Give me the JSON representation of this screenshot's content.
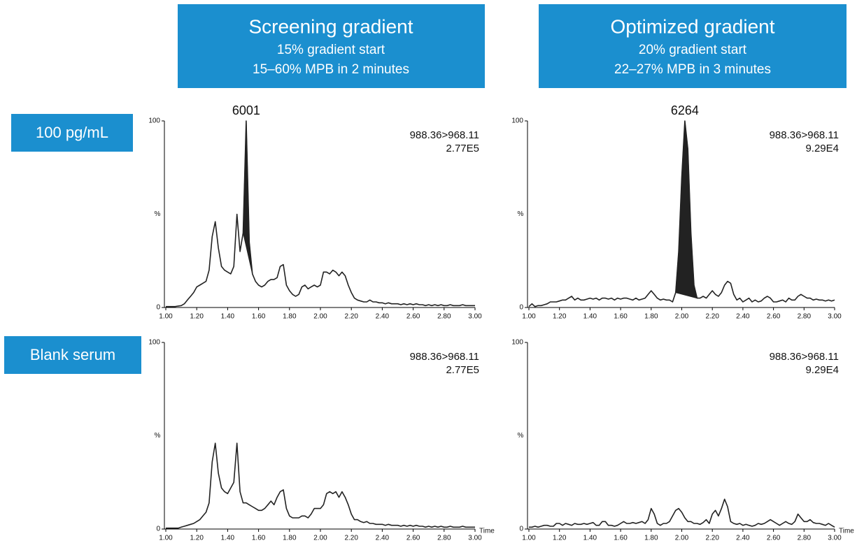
{
  "headers": [
    {
      "title": "Screening gradient",
      "lines": [
        "15% gradient start",
        "15–60% MPB in 2 minutes"
      ]
    },
    {
      "title": "Optimized gradient",
      "lines": [
        "20% gradient start",
        "22–27% MPB in 3 minutes"
      ]
    }
  ],
  "row_labels": [
    "100 pg/mL",
    "Blank serum"
  ],
  "chart_data": [
    {
      "type": "line",
      "ylabel": "%",
      "transition": "988.36>968.11",
      "intensity": "2.77E5",
      "peak_label": "6001",
      "fill_range": [
        1.5,
        1.56
      ],
      "color": "#222222",
      "fill_color": "#222222",
      "xlim": [
        1,
        3
      ],
      "ylim": [
        0,
        100
      ],
      "yticks": [
        0,
        100
      ],
      "xticks": [
        {
          "value": 1,
          "label": "1.00"
        },
        {
          "value": 1.2,
          "label": "1.20"
        },
        {
          "value": 1.4,
          "label": "1.40"
        },
        {
          "value": 1.6,
          "label": "1.60"
        },
        {
          "value": 1.8,
          "label": "1.80"
        },
        {
          "value": 2,
          "label": "2.00"
        },
        {
          "value": 2.2,
          "label": "2.20"
        },
        {
          "value": 2.4,
          "label": "2.40"
        },
        {
          "value": 2.6,
          "label": "2.60"
        },
        {
          "value": 2.8,
          "label": "2.80"
        },
        {
          "value": 3,
          "label": "3.00"
        }
      ],
      "x": [
        1.0,
        1.02,
        1.04,
        1.06,
        1.08,
        1.1,
        1.12,
        1.14,
        1.16,
        1.18,
        1.2,
        1.22,
        1.24,
        1.26,
        1.28,
        1.3,
        1.32,
        1.34,
        1.36,
        1.38,
        1.4,
        1.42,
        1.44,
        1.46,
        1.48,
        1.5,
        1.52,
        1.54,
        1.56,
        1.58,
        1.6,
        1.62,
        1.64,
        1.66,
        1.68,
        1.7,
        1.72,
        1.74,
        1.76,
        1.78,
        1.8,
        1.82,
        1.84,
        1.86,
        1.88,
        1.9,
        1.92,
        1.94,
        1.96,
        1.98,
        2.0,
        2.02,
        2.04,
        2.06,
        2.08,
        2.1,
        2.12,
        2.14,
        2.16,
        2.18,
        2.2,
        2.22,
        2.24,
        2.26,
        2.28,
        2.3,
        2.32,
        2.34,
        2.36,
        2.38,
        2.4,
        2.42,
        2.44,
        2.46,
        2.48,
        2.5,
        2.52,
        2.54,
        2.56,
        2.58,
        2.6,
        2.62,
        2.64,
        2.66,
        2.68,
        2.7,
        2.72,
        2.74,
        2.76,
        2.78,
        2.8,
        2.82,
        2.84,
        2.86,
        2.88,
        2.9,
        2.92,
        2.94,
        2.96,
        2.98,
        3.0
      ],
      "values": [
        0.5,
        0.5,
        0.5,
        0.5,
        0.8,
        1,
        2,
        4,
        6,
        8,
        11,
        12,
        13,
        14,
        20,
        38,
        46,
        32,
        22,
        20,
        19,
        18,
        22,
        50,
        30,
        40,
        100,
        35,
        18,
        14,
        12,
        11,
        12,
        14,
        15,
        15,
        16,
        22,
        23,
        12,
        9,
        7,
        6,
        7,
        11,
        12,
        10,
        11,
        12,
        11,
        12,
        19,
        19,
        18,
        20,
        19,
        17,
        19,
        17,
        12,
        8,
        5,
        4,
        3.5,
        3,
        3,
        4,
        3,
        3,
        2.5,
        2.5,
        2,
        2.5,
        2,
        2,
        2,
        1.5,
        2,
        1.5,
        2,
        1.5,
        2,
        1.5,
        1.5,
        1,
        1.5,
        1,
        1.5,
        1,
        1.5,
        1,
        1,
        1.5,
        1,
        1,
        1,
        1.5,
        1,
        1,
        1,
        1
      ]
    },
    {
      "type": "line",
      "ylabel": "%",
      "transition": "988.36>968.11",
      "intensity": "9.29E4",
      "peak_label": "6264",
      "fill_range": [
        1.96,
        2.1
      ],
      "color": "#222222",
      "fill_color": "#222222",
      "xlim": [
        1,
        3
      ],
      "ylim": [
        0,
        100
      ],
      "yticks": [
        0,
        100
      ],
      "xticks": [
        {
          "value": 1,
          "label": "1.00"
        },
        {
          "value": 1.2,
          "label": "1.20"
        },
        {
          "value": 1.4,
          "label": "1.40"
        },
        {
          "value": 1.6,
          "label": "1.60"
        },
        {
          "value": 1.8,
          "label": "1.80"
        },
        {
          "value": 2,
          "label": "2.00"
        },
        {
          "value": 2.2,
          "label": "2.20"
        },
        {
          "value": 2.4,
          "label": "2.40"
        },
        {
          "value": 2.6,
          "label": "2.60"
        },
        {
          "value": 2.8,
          "label": "2.80"
        },
        {
          "value": 3,
          "label": "3.00"
        }
      ],
      "x": [
        1.0,
        1.02,
        1.04,
        1.06,
        1.08,
        1.1,
        1.12,
        1.14,
        1.16,
        1.18,
        1.2,
        1.22,
        1.24,
        1.26,
        1.28,
        1.3,
        1.32,
        1.34,
        1.36,
        1.38,
        1.4,
        1.42,
        1.44,
        1.46,
        1.48,
        1.5,
        1.52,
        1.54,
        1.56,
        1.58,
        1.6,
        1.62,
        1.64,
        1.66,
        1.68,
        1.7,
        1.72,
        1.74,
        1.76,
        1.78,
        1.8,
        1.82,
        1.84,
        1.86,
        1.88,
        1.9,
        1.92,
        1.94,
        1.96,
        1.98,
        2.0,
        2.02,
        2.04,
        2.06,
        2.08,
        2.1,
        2.12,
        2.14,
        2.16,
        2.18,
        2.2,
        2.22,
        2.24,
        2.26,
        2.28,
        2.3,
        2.32,
        2.34,
        2.36,
        2.38,
        2.4,
        2.42,
        2.44,
        2.46,
        2.48,
        2.5,
        2.52,
        2.54,
        2.56,
        2.58,
        2.6,
        2.62,
        2.64,
        2.66,
        2.68,
        2.7,
        2.72,
        2.74,
        2.76,
        2.78,
        2.8,
        2.82,
        2.84,
        2.86,
        2.88,
        2.9,
        2.92,
        2.94,
        2.96,
        2.98,
        3.0
      ],
      "values": [
        0.5,
        2,
        0.5,
        1,
        1,
        1.5,
        2,
        3,
        3,
        3,
        3.5,
        4,
        4,
        5,
        6,
        4,
        5,
        4,
        4,
        4.5,
        5,
        4.5,
        5,
        4,
        5,
        5,
        4.5,
        5,
        4,
        5,
        4.5,
        5,
        5,
        4.5,
        4,
        5,
        4,
        4.5,
        5,
        7,
        9,
        7,
        5,
        4,
        4.5,
        4,
        4,
        3,
        8,
        30,
        70,
        100,
        85,
        40,
        12,
        5,
        5,
        6,
        5,
        7,
        9,
        7,
        6,
        8,
        12,
        14,
        13,
        7,
        4,
        5,
        3,
        4,
        5,
        3,
        4,
        3,
        3.5,
        5,
        6,
        5,
        3,
        3,
        3.5,
        4,
        3,
        5,
        4,
        4,
        6,
        7,
        6,
        5,
        5,
        4,
        4.5,
        4,
        4,
        3.5,
        4,
        3.5,
        4
      ]
    },
    {
      "type": "line",
      "ylabel": "%",
      "xlabel": "Time",
      "transition": "988.36>968.11",
      "intensity": "2.77E5",
      "color": "#222222",
      "xlim": [
        1,
        3
      ],
      "ylim": [
        0,
        100
      ],
      "yticks": [
        0,
        100
      ],
      "xticks": [
        {
          "value": 1,
          "label": "1.00"
        },
        {
          "value": 1.2,
          "label": "1.20"
        },
        {
          "value": 1.4,
          "label": "1.40"
        },
        {
          "value": 1.6,
          "label": "1.60"
        },
        {
          "value": 1.8,
          "label": "1.80"
        },
        {
          "value": 2,
          "label": "2.00"
        },
        {
          "value": 2.2,
          "label": "2.20"
        },
        {
          "value": 2.4,
          "label": "2.40"
        },
        {
          "value": 2.6,
          "label": "2.60"
        },
        {
          "value": 2.8,
          "label": "2.80"
        },
        {
          "value": 3,
          "label": "3.00"
        }
      ],
      "x": [
        1.0,
        1.02,
        1.04,
        1.06,
        1.08,
        1.1,
        1.12,
        1.14,
        1.16,
        1.18,
        1.2,
        1.22,
        1.24,
        1.26,
        1.28,
        1.3,
        1.32,
        1.34,
        1.36,
        1.38,
        1.4,
        1.42,
        1.44,
        1.46,
        1.48,
        1.5,
        1.52,
        1.54,
        1.56,
        1.58,
        1.6,
        1.62,
        1.64,
        1.66,
        1.68,
        1.7,
        1.72,
        1.74,
        1.76,
        1.78,
        1.8,
        1.82,
        1.84,
        1.86,
        1.88,
        1.9,
        1.92,
        1.94,
        1.96,
        1.98,
        2.0,
        2.02,
        2.04,
        2.06,
        2.08,
        2.1,
        2.12,
        2.14,
        2.16,
        2.18,
        2.2,
        2.22,
        2.24,
        2.26,
        2.28,
        2.3,
        2.32,
        2.34,
        2.36,
        2.38,
        2.4,
        2.42,
        2.44,
        2.46,
        2.48,
        2.5,
        2.52,
        2.54,
        2.56,
        2.58,
        2.6,
        2.62,
        2.64,
        2.66,
        2.68,
        2.7,
        2.72,
        2.74,
        2.76,
        2.78,
        2.8,
        2.82,
        2.84,
        2.86,
        2.88,
        2.9,
        2.92,
        2.94,
        2.96,
        2.98,
        3.0
      ],
      "values": [
        0.5,
        0.5,
        0.5,
        0.5,
        0.5,
        1,
        1.5,
        2,
        2.5,
        3,
        4,
        5,
        7,
        9,
        14,
        36,
        46,
        30,
        22,
        20,
        19,
        22,
        25,
        46,
        20,
        14,
        14,
        13,
        12,
        11,
        10,
        10,
        11,
        13,
        15,
        13,
        17,
        20,
        21,
        11,
        7,
        6,
        6,
        6,
        7,
        7,
        6,
        8,
        11,
        11,
        11,
        13,
        19,
        20,
        19,
        20,
        17,
        20,
        17,
        13,
        8,
        5,
        5,
        4,
        3.5,
        4,
        3,
        3,
        2.5,
        2.5,
        2.5,
        2,
        2.5,
        2,
        2,
        2,
        1.5,
        2,
        1.5,
        2,
        1.5,
        2,
        1.5,
        1.5,
        1,
        1.5,
        1,
        1.5,
        1,
        1.5,
        1,
        1,
        1.5,
        1,
        1,
        1,
        1.5,
        1,
        1,
        1,
        1
      ]
    },
    {
      "type": "line",
      "ylabel": "%",
      "xlabel": "Time",
      "transition": "988.36>968.11",
      "intensity": "9.29E4",
      "color": "#222222",
      "xlim": [
        1,
        3
      ],
      "ylim": [
        0,
        100
      ],
      "yticks": [
        0,
        100
      ],
      "xticks": [
        {
          "value": 1,
          "label": "1.00"
        },
        {
          "value": 1.2,
          "label": "1.20"
        },
        {
          "value": 1.4,
          "label": "1.40"
        },
        {
          "value": 1.6,
          "label": "1.60"
        },
        {
          "value": 1.8,
          "label": "1.80"
        },
        {
          "value": 2,
          "label": "2.00"
        },
        {
          "value": 2.2,
          "label": "2.20"
        },
        {
          "value": 2.4,
          "label": "2.40"
        },
        {
          "value": 2.6,
          "label": "2.60"
        },
        {
          "value": 2.8,
          "label": "2.80"
        },
        {
          "value": 3,
          "label": "3.00"
        }
      ],
      "x": [
        1.0,
        1.02,
        1.04,
        1.06,
        1.08,
        1.1,
        1.12,
        1.14,
        1.16,
        1.18,
        1.2,
        1.22,
        1.24,
        1.26,
        1.28,
        1.3,
        1.32,
        1.34,
        1.36,
        1.38,
        1.4,
        1.42,
        1.44,
        1.46,
        1.48,
        1.5,
        1.52,
        1.54,
        1.56,
        1.58,
        1.6,
        1.62,
        1.64,
        1.66,
        1.68,
        1.7,
        1.72,
        1.74,
        1.76,
        1.78,
        1.8,
        1.82,
        1.84,
        1.86,
        1.88,
        1.9,
        1.92,
        1.94,
        1.96,
        1.98,
        2.0,
        2.02,
        2.04,
        2.06,
        2.08,
        2.1,
        2.12,
        2.14,
        2.16,
        2.18,
        2.2,
        2.22,
        2.24,
        2.26,
        2.28,
        2.3,
        2.32,
        2.34,
        2.36,
        2.38,
        2.4,
        2.42,
        2.44,
        2.46,
        2.48,
        2.5,
        2.52,
        2.54,
        2.56,
        2.58,
        2.6,
        2.62,
        2.64,
        2.66,
        2.68,
        2.7,
        2.72,
        2.74,
        2.76,
        2.78,
        2.8,
        2.82,
        2.84,
        2.86,
        2.88,
        2.9,
        2.92,
        2.94,
        2.96,
        2.98,
        3.0
      ],
      "values": [
        1,
        1,
        1.5,
        1,
        1.5,
        2,
        2,
        1.5,
        1.5,
        3,
        3,
        2,
        3,
        2.5,
        2,
        3,
        2.5,
        2.5,
        3,
        2.5,
        3,
        3.5,
        2,
        2,
        4,
        4,
        2,
        2,
        1.5,
        2,
        3,
        4,
        3,
        3,
        3.5,
        3,
        3.5,
        4,
        3,
        5,
        11,
        8,
        3,
        2,
        3,
        3,
        4,
        7,
        10,
        11,
        9,
        6,
        4,
        4,
        3,
        3,
        2.5,
        3.5,
        5,
        3,
        8,
        10,
        7,
        11,
        16,
        12,
        4,
        3,
        2.5,
        3,
        2,
        2.5,
        2,
        1.5,
        2,
        3,
        2.5,
        3,
        4,
        5,
        4,
        3,
        2,
        3,
        4,
        3,
        2.5,
        4,
        8,
        6,
        4,
        4,
        5,
        3.5,
        3,
        3,
        2.5,
        2,
        3,
        2,
        1
      ]
    }
  ]
}
